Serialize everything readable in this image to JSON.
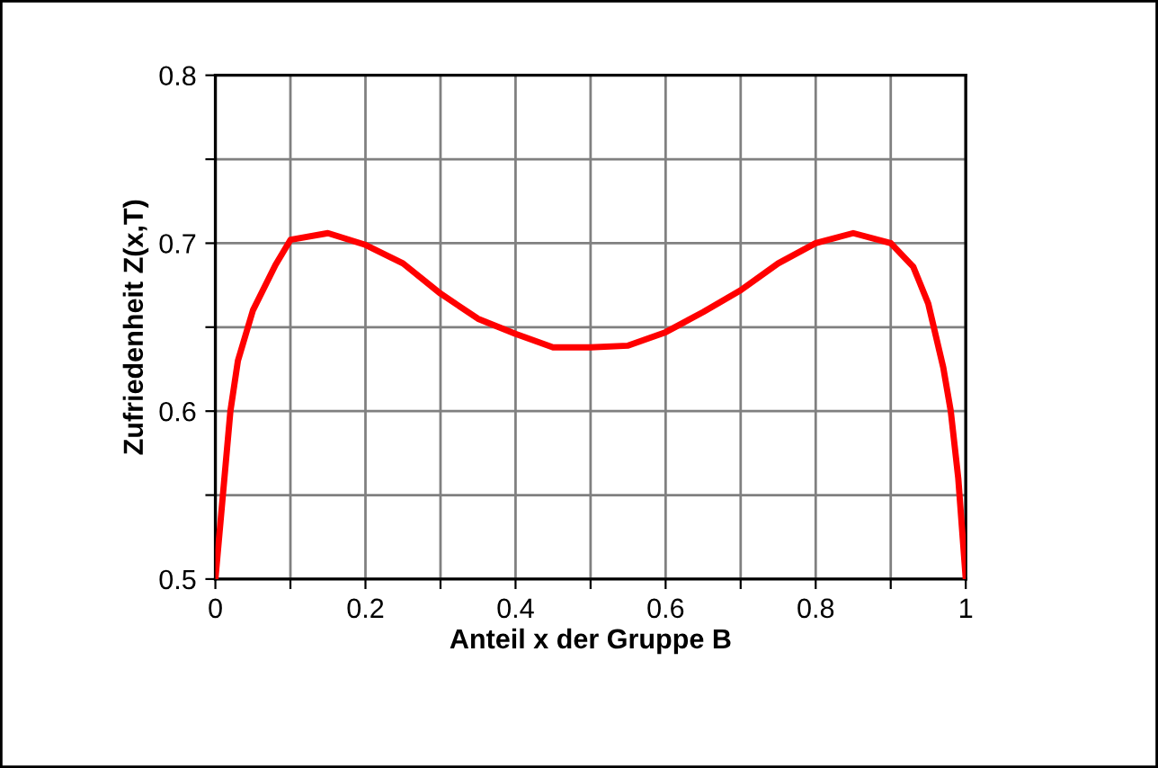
{
  "chart_data": {
    "type": "line",
    "xlabel": "Anteil x der Gruppe B",
    "ylabel": "Zufriedenheit Z(x,T)",
    "series": [
      {
        "color": "#ff0000",
        "x": [
          0,
          0.01,
          0.02,
          0.03,
          0.05,
          0.08,
          0.1,
          0.15,
          0.2,
          0.25,
          0.3,
          0.35,
          0.4,
          0.45,
          0.5,
          0.55,
          0.6,
          0.65,
          0.7,
          0.75,
          0.8,
          0.85,
          0.9,
          0.93,
          0.95,
          0.97,
          0.98,
          0.99,
          1
        ],
        "values": [
          0.5,
          0.55,
          0.6,
          0.63,
          0.66,
          0.687,
          0.702,
          0.706,
          0.699,
          0.688,
          0.67,
          0.655,
          0.646,
          0.638,
          0.638,
          0.639,
          0.647,
          0.659,
          0.672,
          0.688,
          0.7,
          0.706,
          0.7,
          0.686,
          0.664,
          0.626,
          0.6,
          0.56,
          0.5
        ]
      }
    ],
    "xlim": [
      0,
      1
    ],
    "ylim": [
      0.5,
      0.8
    ],
    "xticks": [
      0,
      {
        "value": 0.1,
        "label": null
      },
      0.2,
      {
        "value": 0.3,
        "label": null
      },
      0.4,
      {
        "value": 0.5,
        "label": null
      },
      0.6,
      {
        "value": 0.7,
        "label": null
      },
      0.8,
      {
        "value": 0.9,
        "label": null
      },
      1
    ],
    "yticks": [
      0.5,
      {
        "value": 0.55,
        "label": null
      },
      0.6,
      {
        "value": 0.65,
        "label": null
      },
      0.7,
      {
        "value": 0.75,
        "label": null
      },
      0.8
    ],
    "grid": true,
    "line_style": "solid",
    "marker": "none"
  }
}
